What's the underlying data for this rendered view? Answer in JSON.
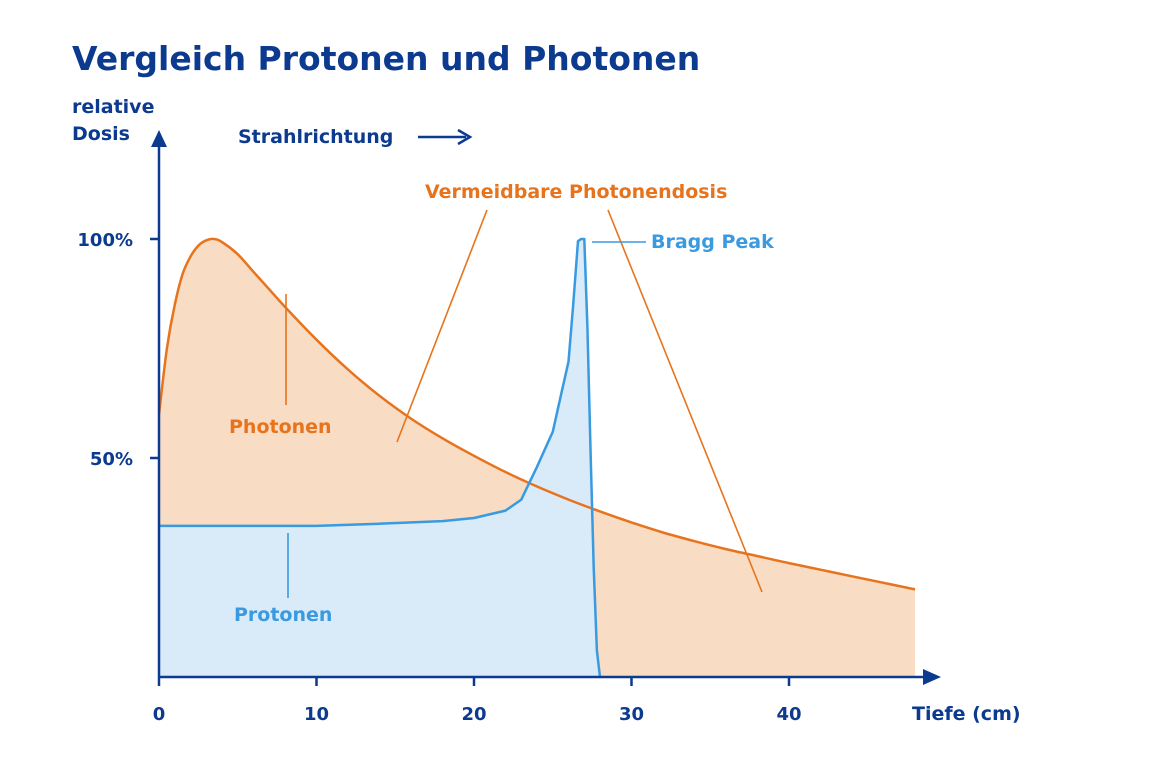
{
  "chart_data": {
    "type": "area",
    "title": "Vergleich Protonen und Photonen",
    "ylabel_line1": "relative",
    "ylabel_line2": "Dosis",
    "xlabel": "Tiefe (cm)",
    "direction_label": "Strahlrichtung",
    "xlim": [
      0,
      48
    ],
    "ylim": [
      0,
      100
    ],
    "x_ticks": [
      0,
      10,
      20,
      30,
      40
    ],
    "x_tick_labels": [
      "0",
      "10",
      "20",
      "30",
      "40"
    ],
    "y_ticks": [
      50,
      100
    ],
    "y_tick_labels": [
      "50%",
      "100%"
    ],
    "grid": false,
    "series": [
      {
        "name": "Photonen",
        "x": [
          0,
          0.5,
          1,
          1.5,
          2,
          2.5,
          3,
          3.5,
          4,
          5,
          6,
          7,
          8,
          10,
          12,
          14,
          16,
          18,
          20,
          22,
          24,
          26,
          28,
          30,
          32,
          34,
          36,
          38,
          40,
          42,
          44,
          46,
          48
        ],
        "y": [
          60,
          75,
          85,
          92,
          96,
          98.5,
          99.7,
          100,
          99.3,
          96.5,
          92.5,
          88.5,
          84.5,
          77,
          70.2,
          64.2,
          59,
          54.5,
          50.5,
          46.8,
          43.5,
          40.5,
          37.8,
          35.3,
          33,
          31,
          29.2,
          27.6,
          26,
          24.5,
          23,
          21.5,
          20
        ]
      },
      {
        "name": "Protonen",
        "x": [
          0,
          5,
          10,
          14,
          18,
          20,
          22,
          23,
          24,
          25,
          25.5,
          26,
          26.3,
          26.6,
          26.8,
          27,
          27.2,
          27.4,
          27.6,
          27.8,
          28
        ],
        "y": [
          34.5,
          34.5,
          34.5,
          35,
          35.6,
          36.3,
          38,
          40.5,
          48,
          56,
          64,
          72,
          85,
          99.5,
          100,
          100,
          80,
          52,
          25,
          6,
          0
        ]
      }
    ],
    "annotations": [
      {
        "label": "Photonen",
        "color": "#e8731d"
      },
      {
        "label": "Vermeidbare Photonendosis",
        "color": "#e8731d"
      },
      {
        "label": "Bragg Peak",
        "color": "#3a9ae0"
      },
      {
        "label": "Protonen",
        "color": "#3a9ae0"
      }
    ],
    "colors": {
      "photon_line": "#e8731d",
      "photon_fill": "#f9dcc4",
      "proton_line": "#3a9ae0",
      "proton_fill": "#d9eaf8",
      "axis": "#0b3a8f"
    }
  }
}
